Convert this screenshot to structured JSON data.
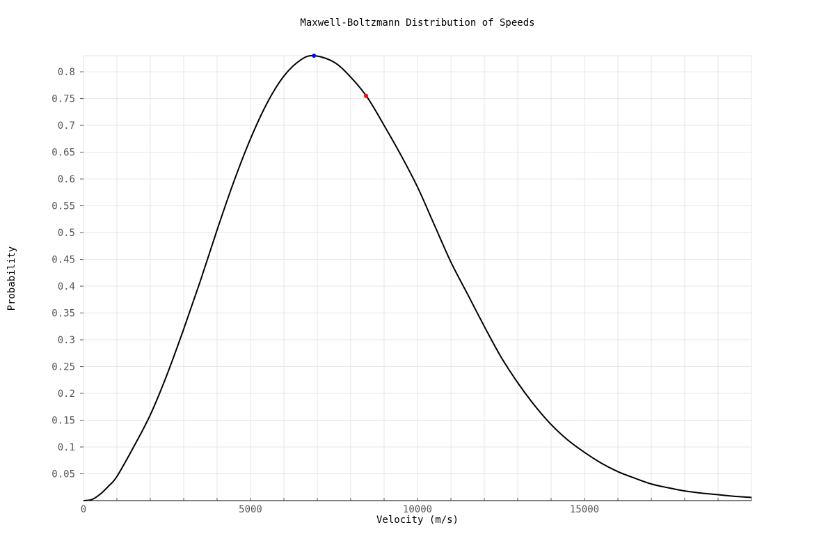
{
  "chart_data": {
    "type": "line",
    "title": "Maxwell-Boltzmann Distribution of Speeds",
    "xlabel": "Velocity (m/s)",
    "ylabel": "Probability",
    "xlim": [
      0,
      20000
    ],
    "ylim": [
      0,
      0.83
    ],
    "x_ticks": [
      0,
      5000,
      10000,
      15000
    ],
    "x_minor_step": 1000,
    "y_ticks": [
      0.05,
      0.1,
      0.15,
      0.2,
      0.25,
      0.3,
      0.35,
      0.4,
      0.45,
      0.5,
      0.55,
      0.6,
      0.65,
      0.7,
      0.75,
      0.8
    ],
    "grid": true,
    "series": [
      {
        "color": "#000000",
        "x": [
          0,
          250,
          500,
          750,
          1000,
          1500,
          2000,
          2500,
          3000,
          3500,
          4000,
          4500,
          5000,
          5500,
          6000,
          6500,
          6900,
          7500,
          8000,
          8500,
          9000,
          9500,
          10000,
          10500,
          11000,
          11500,
          12000,
          12500,
          13000,
          13500,
          14000,
          14500,
          15000,
          15500,
          16000,
          16500,
          17000,
          17500,
          18000,
          18500,
          19000,
          19500,
          20000
        ],
        "y": [
          0.0,
          0.002,
          0.012,
          0.027,
          0.045,
          0.1,
          0.16,
          0.235,
          0.32,
          0.41,
          0.505,
          0.595,
          0.675,
          0.742,
          0.792,
          0.822,
          0.83,
          0.818,
          0.79,
          0.752,
          0.7,
          0.645,
          0.585,
          0.515,
          0.445,
          0.385,
          0.325,
          0.268,
          0.22,
          0.178,
          0.142,
          0.113,
          0.09,
          0.07,
          0.054,
          0.042,
          0.031,
          0.024,
          0.018,
          0.014,
          0.011,
          0.008,
          0.006
        ]
      }
    ],
    "points": [
      {
        "x": 6900,
        "y": 0.83,
        "color": "#0000ff"
      },
      {
        "x": 8460,
        "y": 0.755,
        "color": "#ff0000"
      }
    ]
  }
}
